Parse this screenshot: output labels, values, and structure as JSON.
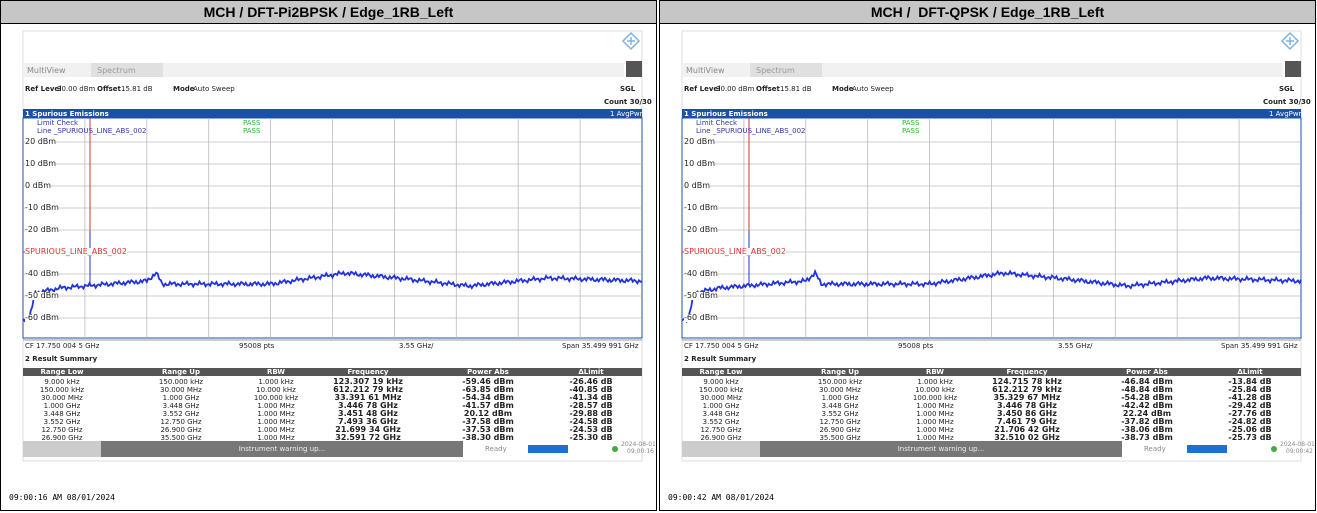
{
  "panels": [
    {
      "header": "MCH / DFT-Pi2BPSK / Edge_1RB_Left",
      "timestamp": "09:00:16 AM 08/01/2024",
      "screen": {
        "tabs": [
          "MultiView",
          "Spectrum"
        ],
        "ref_level_label": "Ref Level",
        "ref_level": "30.00 dBm",
        "offset_label": "Offset",
        "offset": "15.81 dB",
        "mode_label": "Mode",
        "mode": "Auto Sweep",
        "sgl": "SGL",
        "count": "Count 30/30",
        "window_title": "1 Spurious Emissions",
        "trace_label": "1 AvgPwr",
        "limit_check": "Limit Check",
        "limit_check_result": "PASS",
        "limit_line": "Line _SPURIOUS_LINE_ABS_002",
        "limit_line_result": "PASS",
        "y_labels": [
          "20 dBm",
          "10 dBm",
          "0 dBm",
          "-10 dBm",
          "-20 dBm",
          "-40 dBm",
          "-50 dBm",
          "-60 dBm"
        ],
        "limit_label": "SPURIOUS_LINE_ABS_002",
        "cf": "CF 17.750 004 5 GHz",
        "points": "95008 pts",
        "div": "3.55 GHz/",
        "span": "Span 35.499 991 GHz",
        "summary_title": "2 Result Summary",
        "columns": [
          "Range Low",
          "Range Up",
          "RBW",
          "Frequency",
          "Power Abs",
          "ΔLimit"
        ],
        "rows": [
          [
            "9.000 kHz",
            "150.000 kHz",
            "1.000 kHz",
            "123.307 19 kHz",
            "-59.46 dBm",
            "-26.46 dB"
          ],
          [
            "150.000 kHz",
            "30.000 MHz",
            "10.000 kHz",
            "612.212 79 kHz",
            "-63.85 dBm",
            "-40.85 dB"
          ],
          [
            "30.000 MHz",
            "1.000 GHz",
            "100.000 kHz",
            "33.391 61 MHz",
            "-54.34 dBm",
            "-41.34 dB"
          ],
          [
            "1.000 GHz",
            "3.448 GHz",
            "1.000 MHz",
            "3.446 78 GHz",
            "-41.57 dBm",
            "-28.57 dB"
          ],
          [
            "3.448 GHz",
            "3.552 GHz",
            "1.000 MHz",
            "3.451 48 GHz",
            "20.12 dBm",
            "-29.88 dB"
          ],
          [
            "3.552 GHz",
            "12.750 GHz",
            "1.000 MHz",
            "7.493 36 GHz",
            "-37.58 dBm",
            "-24.58 dB"
          ],
          [
            "12.750 GHz",
            "26.900 GHz",
            "1.000 MHz",
            "21.699 34 GHz",
            "-37.53 dBm",
            "-24.53 dB"
          ],
          [
            "26.900 GHz",
            "35.500 GHz",
            "1.000 MHz",
            "32.591 72 GHz",
            "-38.30 dBm",
            "-25.30 dB"
          ]
        ],
        "status": "Instrument warning up...",
        "ready": "Ready",
        "date": "2024-08-01",
        "time": "09:00:16"
      }
    },
    {
      "header": "MCH /  DFT-QPSK / Edge_1RB_Left",
      "timestamp": "09:00:42 AM 08/01/2024",
      "screen": {
        "tabs": [
          "MultiView",
          "Spectrum"
        ],
        "ref_level_label": "Ref Level",
        "ref_level": "30.00 dBm",
        "offset_label": "Offset",
        "offset": "15.81 dB",
        "mode_label": "Mode",
        "mode": "Auto Sweep",
        "sgl": "SGL",
        "count": "Count 30/30",
        "window_title": "1 Spurious Emissions",
        "trace_label": "1 AvgPwr",
        "limit_check": "Limit Check",
        "limit_check_result": "PASS",
        "limit_line": "Line _SPURIOUS_LINE_ABS_002",
        "limit_line_result": "PASS",
        "y_labels": [
          "20 dBm",
          "10 dBm",
          "0 dBm",
          "-10 dBm",
          "-20 dBm",
          "-40 dBm",
          "-50 dBm",
          "-60 dBm"
        ],
        "limit_label": "SPURIOUS_LINE_ABS_002",
        "cf": "CF 17.750 004 5 GHz",
        "points": "95008 pts",
        "div": "3.55 GHz/",
        "span": "Span 35.499 991 GHz",
        "summary_title": "2 Result Summary",
        "columns": [
          "Range Low",
          "Range Up",
          "RBW",
          "Frequency",
          "Power Abs",
          "ΔLimit"
        ],
        "rows": [
          [
            "9.000 kHz",
            "150.000 kHz",
            "1.000 kHz",
            "124.715 78 kHz",
            "-46.84 dBm",
            "-13.84 dB"
          ],
          [
            "150.000 kHz",
            "30.000 MHz",
            "10.000 kHz",
            "612.212 79 kHz",
            "-48.84 dBm",
            "-25.84 dB"
          ],
          [
            "30.000 MHz",
            "1.000 GHz",
            "100.000 kHz",
            "35.329 67 MHz",
            "-54.28 dBm",
            "-41.28 dB"
          ],
          [
            "1.000 GHz",
            "3.448 GHz",
            "1.000 MHz",
            "3.446 78 GHz",
            "-42.42 dBm",
            "-29.42 dB"
          ],
          [
            "3.448 GHz",
            "3.552 GHz",
            "1.000 MHz",
            "3.450 86 GHz",
            "22.24 dBm",
            "-27.76 dB"
          ],
          [
            "3.552 GHz",
            "12.750 GHz",
            "1.000 MHz",
            "7.461 79 GHz",
            "-37.82 dBm",
            "-24.82 dB"
          ],
          [
            "12.750 GHz",
            "26.900 GHz",
            "1.000 MHz",
            "21.706 42 GHz",
            "-38.06 dBm",
            "-25.06 dB"
          ],
          [
            "26.900 GHz",
            "35.500 GHz",
            "1.000 MHz",
            "32.510 02 GHz",
            "-38.73 dBm",
            "-25.73 dB"
          ]
        ],
        "status": "Instrument warning up...",
        "ready": "Ready",
        "date": "2024-08-01",
        "time": "09:00:42"
      }
    }
  ]
}
